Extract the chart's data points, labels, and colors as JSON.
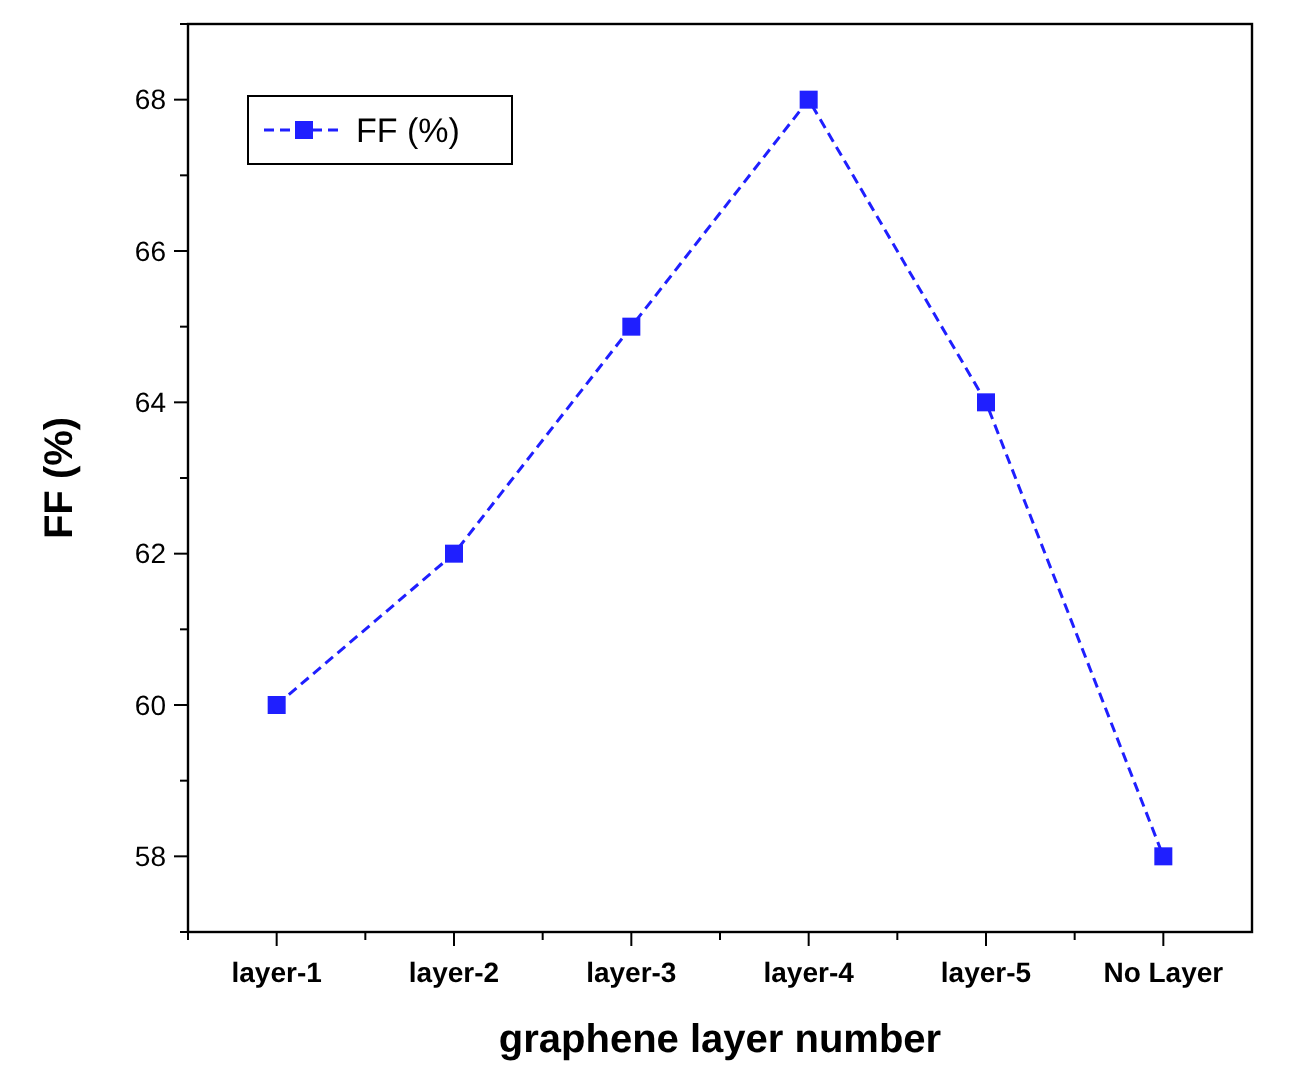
{
  "chart_data": {
    "type": "line",
    "xlabel": "graphene layer number",
    "ylabel": "FF (%)",
    "categories": [
      "layer-1",
      "layer-2",
      "layer-3",
      "layer-4",
      "layer-5",
      "No Layer"
    ],
    "series": [
      {
        "name": "FF (%)",
        "color": "#1f1fff",
        "values": [
          60,
          62,
          65,
          68,
          64,
          58
        ]
      }
    ],
    "ylim": [
      57,
      69
    ],
    "yticks": [
      {
        "value": 57,
        "label": null
      },
      58,
      {
        "value": 59,
        "label": null
      },
      60,
      {
        "value": 61,
        "label": null
      },
      62,
      {
        "value": 63,
        "label": null
      },
      64,
      {
        "value": 65,
        "label": null
      },
      66,
      {
        "value": 67,
        "label": null
      },
      68,
      {
        "value": 69,
        "label": null
      }
    ],
    "legend": "top left",
    "marker": "square",
    "line_style": "dashed",
    "grid": false
  }
}
